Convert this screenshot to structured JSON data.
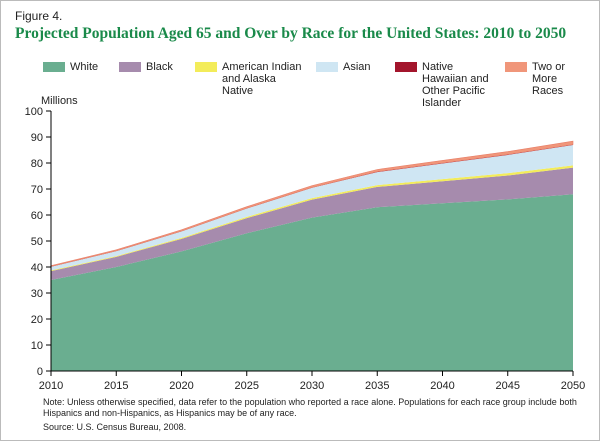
{
  "figure_label": "Figure 4.",
  "chart_data": {
    "type": "stacked-area",
    "title": "Projected Population Aged 65 and Over by Race for the United States: 2010 to 2050",
    "y_label": "Millions",
    "x": [
      2010,
      2015,
      2020,
      2025,
      2030,
      2035,
      2040,
      2045,
      2050
    ],
    "xlim": [
      2010,
      2050
    ],
    "xticks": [
      2010,
      2015,
      2020,
      2025,
      2030,
      2035,
      2040,
      2045,
      2050
    ],
    "ylim": [
      0,
      100
    ],
    "yticks": [
      0,
      10,
      20,
      30,
      40,
      50,
      60,
      70,
      80,
      90,
      100
    ],
    "series": [
      {
        "name": "White",
        "color": "#6aae90",
        "values": [
          35,
          40,
          46,
          53,
          59,
          63,
          64.5,
          66,
          68
        ]
      },
      {
        "name": "Black",
        "color": "#a68bad",
        "values": [
          3.4,
          3.9,
          4.8,
          5.8,
          6.9,
          7.8,
          8.5,
          9.2,
          10.2
        ]
      },
      {
        "name": "American Indian and Alaska Native",
        "color": "#f3ec5a",
        "values": [
          0.3,
          0.3,
          0.4,
          0.5,
          0.6,
          0.7,
          0.8,
          0.9,
          0.9
        ]
      },
      {
        "name": "Asian",
        "color": "#cfe6f3",
        "values": [
          1.4,
          1.9,
          2.5,
          3.2,
          4.0,
          5.0,
          6.0,
          7.0,
          7.8
        ]
      },
      {
        "name": "Native Hawaiian and Other Pacific Islander",
        "color": "#a3152c",
        "values": [
          0.1,
          0.1,
          0.1,
          0.1,
          0.1,
          0.2,
          0.2,
          0.2,
          0.2
        ]
      },
      {
        "name": "Two or More Races",
        "color": "#f0967a",
        "values": [
          0.3,
          0.4,
          0.5,
          0.6,
          0.7,
          0.8,
          1.0,
          1.1,
          1.3
        ]
      }
    ],
    "note": "Note: Unless otherwise specified, data refer to the population who reported a race alone.  Populations for each race group include both Hispanics and non-Hispanics, as Hispanics may be of any race.",
    "source": "Source: U.S. Census Bureau, 2008."
  }
}
